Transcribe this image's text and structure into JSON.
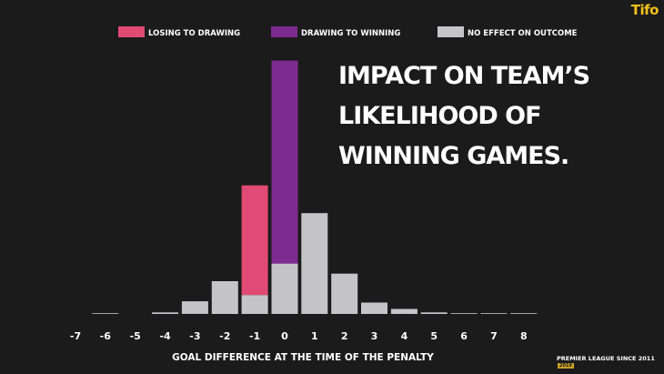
{
  "brand": "Tifo",
  "footnote": {
    "text": "Premier League since 2011",
    "badge": "2019"
  },
  "chart_data": {
    "type": "bar",
    "stacked": true,
    "title": "Impact on team’s likelihood of winning games.",
    "xlabel": "Goal difference at the time of the penalty",
    "ylabel": "",
    "categories": [
      "-7",
      "-6",
      "-5",
      "-4",
      "-3",
      "-2",
      "-1",
      "0",
      "1",
      "2",
      "3",
      "4",
      "5",
      "6",
      "7",
      "8"
    ],
    "ylim": [
      0,
      100
    ],
    "grid": false,
    "legend_position": "top",
    "series": [
      {
        "name": "No effect on outcome",
        "color": "#c5c4c9",
        "values": [
          0,
          0.3,
          0,
          0.6,
          5,
          13,
          7.5,
          20,
          40,
          16,
          4.5,
          2,
          0.6,
          0.3,
          0.3,
          0.3
        ]
      },
      {
        "name": "Losing to drawing",
        "color": "#e14a74",
        "values": [
          0,
          0,
          0,
          0,
          0,
          0,
          43.5,
          0,
          0,
          0,
          0,
          0,
          0,
          0,
          0,
          0
        ]
      },
      {
        "name": "Drawing to winning",
        "color": "#7e2b8f",
        "values": [
          0,
          0,
          0,
          0,
          0,
          0,
          0,
          80.5,
          0,
          0,
          0,
          0,
          0,
          0,
          0,
          0
        ]
      }
    ]
  }
}
